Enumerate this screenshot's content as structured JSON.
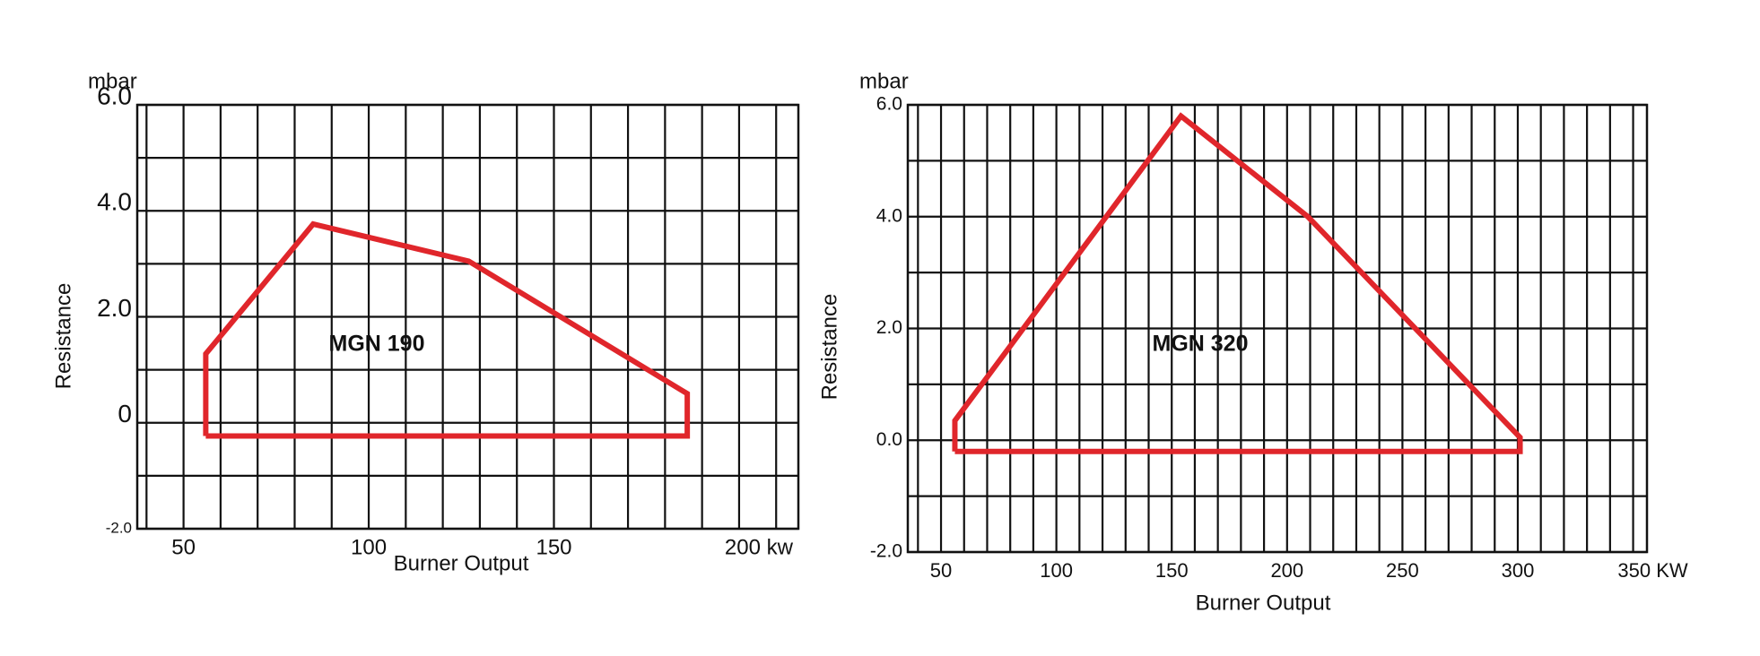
{
  "chart_data": [
    {
      "type": "line",
      "annotation": "MGN 190",
      "y_unit": "mbar",
      "ylabel": "Resistance",
      "xlabel": "Burner Output",
      "x": [
        56,
        56,
        85,
        127,
        186,
        186,
        56
      ],
      "values": [
        -0.25,
        1.3,
        3.75,
        3.05,
        0.55,
        -0.25,
        -0.25
      ],
      "color": "#e0262b",
      "xlim": [
        37.5,
        216
      ],
      "ylim": [
        -2,
        6
      ],
      "xticks": [
        50,
        100,
        150,
        {
          "value": 200,
          "label": "200 kw"
        }
      ],
      "yticks": [
        {
          "value": 6,
          "label": "6.0"
        },
        {
          "value": 4,
          "label": "4.0"
        },
        {
          "value": 2,
          "label": "2.0"
        },
        0,
        {
          "value": -2,
          "label": "-2.0"
        }
      ],
      "x_grid": [
        40,
        50,
        60,
        70,
        80,
        90,
        100,
        110,
        120,
        130,
        140,
        150,
        160,
        170,
        180,
        190,
        200,
        210
      ],
      "y_grid": [
        -2,
        -1,
        0,
        1,
        2,
        3,
        4,
        5,
        6
      ],
      "grid": true
    },
    {
      "type": "line",
      "annotation": "MGN 320",
      "y_unit": "mbar",
      "ylabel": "Resistance",
      "xlabel": "Burner Output",
      "x": [
        56,
        56,
        154,
        209,
        301,
        301,
        56
      ],
      "values": [
        -0.2,
        0.35,
        5.8,
        4.0,
        0.05,
        -0.2,
        -0.2
      ],
      "color": "#e0262b",
      "xlim": [
        35.6,
        356
      ],
      "ylim": [
        -2,
        6
      ],
      "xticks": [
        50,
        100,
        150,
        200,
        250,
        300,
        {
          "value": 350,
          "label": "350 KW"
        }
      ],
      "yticks": [
        {
          "value": 6,
          "label": "6.0"
        },
        {
          "value": 4,
          "label": "4.0"
        },
        {
          "value": 2,
          "label": "2.0"
        },
        {
          "value": 0,
          "label": "0.0"
        },
        {
          "value": -2,
          "label": "-2.0"
        }
      ],
      "x_grid": [
        40,
        50,
        60,
        70,
        80,
        90,
        100,
        110,
        120,
        130,
        140,
        150,
        160,
        170,
        180,
        190,
        200,
        210,
        220,
        230,
        240,
        250,
        260,
        270,
        280,
        290,
        300,
        310,
        320,
        330,
        340,
        350
      ],
      "y_grid": [
        -2,
        -1,
        0,
        1,
        2,
        3,
        4,
        5,
        6
      ],
      "grid": true
    }
  ]
}
